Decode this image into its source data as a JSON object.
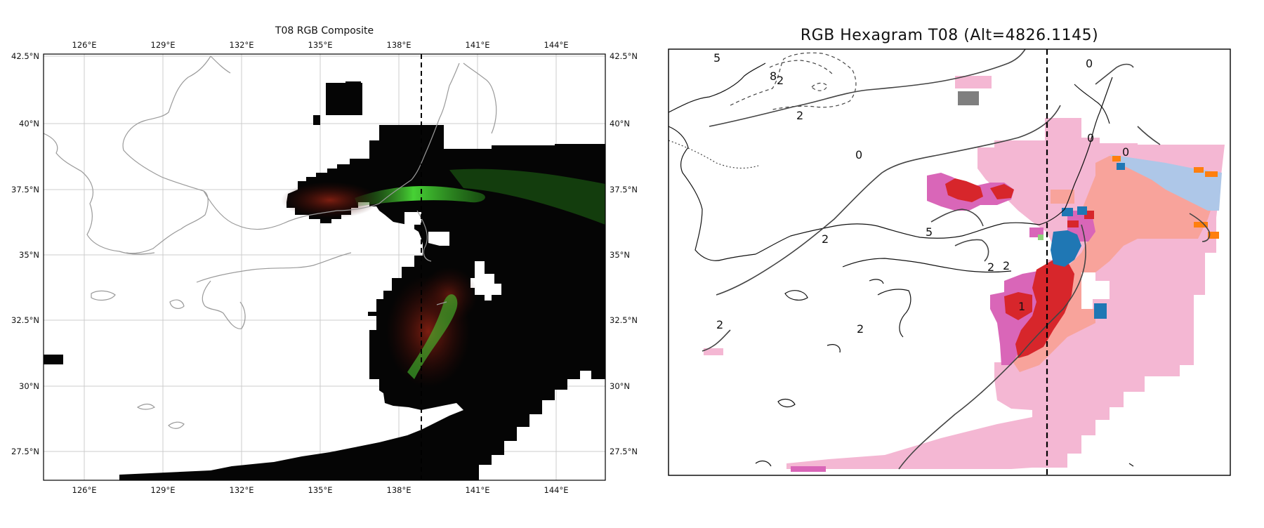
{
  "left_panel": {
    "title": "T08 RGB Composite",
    "lon_ticks": [
      "126°E",
      "129°E",
      "132°E",
      "135°E",
      "138°E",
      "141°E",
      "144°E"
    ],
    "lat_ticks": [
      "42.5°N",
      "40°N",
      "37.5°N",
      "35°N",
      "32.5°N",
      "30°N",
      "27.5°N"
    ],
    "lon_range": [
      124.5,
      146
    ],
    "lat_range": [
      26.2,
      42.7
    ],
    "cross_section_lon": 139.0,
    "colors": {
      "plume": "#000000",
      "ash_red": "#7a1a10",
      "ash_green": "#3ecf33",
      "coast": "#9a9a9a",
      "grid": "#cccccc"
    }
  },
  "right_panel": {
    "title": "RGB Hexagram T08 (Alt=4826.1145)",
    "contour_labels": [
      "5",
      "8",
      "2",
      "0",
      "2",
      "0",
      "0",
      "2",
      "5",
      "2",
      "2",
      "1",
      "2",
      "0",
      "2"
    ],
    "cross_section_lon": 139.0,
    "colors": {
      "pink": "#f4b7d3",
      "salmon": "#f8a39b",
      "red": "#d7262b",
      "magenta": "#d966b8",
      "blue": "#1f77b4",
      "lightblue": "#aec7e8",
      "orange": "#ff7f0e",
      "gray": "#7f7f7f",
      "green": "#8fd17b"
    }
  }
}
